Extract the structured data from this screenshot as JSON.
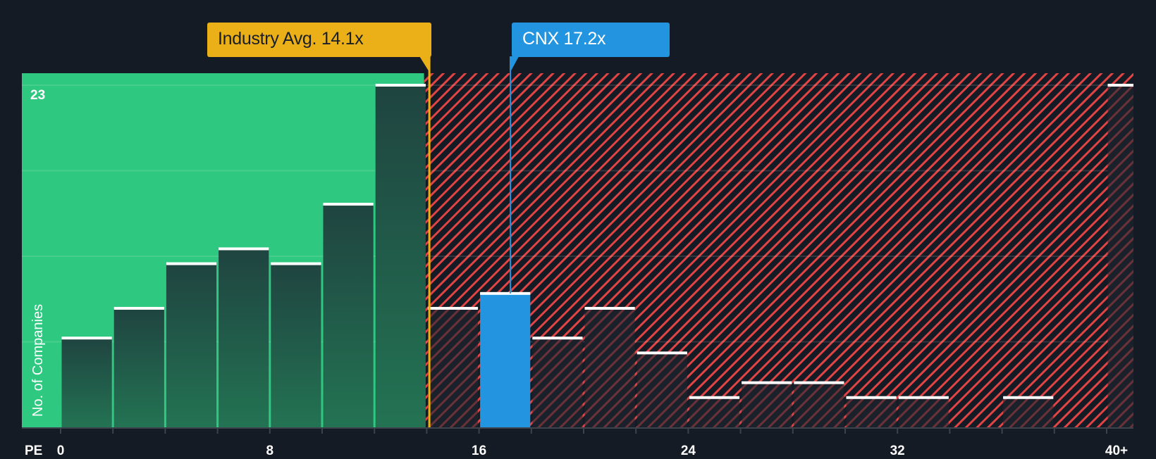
{
  "chart_data": {
    "type": "bar",
    "title": "",
    "xlabel": "PE",
    "ylabel": "No. of Companies",
    "y_max_label": "23",
    "ylim": [
      0,
      23
    ],
    "xlim": [
      0,
      42
    ],
    "x_tick_labels": [
      "0",
      "8",
      "16",
      "24",
      "32",
      "40+"
    ],
    "x_tick_values": [
      0,
      8,
      16,
      24,
      32,
      40
    ],
    "bin_width": 2,
    "bins": [
      {
        "from": 0,
        "to": 2,
        "count": 6
      },
      {
        "from": 2,
        "to": 4,
        "count": 8
      },
      {
        "from": 4,
        "to": 6,
        "count": 11
      },
      {
        "from": 6,
        "to": 8,
        "count": 12
      },
      {
        "from": 8,
        "to": 10,
        "count": 11
      },
      {
        "from": 10,
        "to": 12,
        "count": 15
      },
      {
        "from": 12,
        "to": 14,
        "count": 23
      },
      {
        "from": 14,
        "to": 16,
        "count": 8
      },
      {
        "from": 16,
        "to": 18,
        "count": 9,
        "highlight": true
      },
      {
        "from": 18,
        "to": 20,
        "count": 6
      },
      {
        "from": 20,
        "to": 22,
        "count": 8
      },
      {
        "from": 22,
        "to": 24,
        "count": 5
      },
      {
        "from": 24,
        "to": 26,
        "count": 2
      },
      {
        "from": 26,
        "to": 28,
        "count": 3
      },
      {
        "from": 28,
        "to": 30,
        "count": 3
      },
      {
        "from": 30,
        "to": 32,
        "count": 2
      },
      {
        "from": 32,
        "to": 34,
        "count": 2
      },
      {
        "from": 34,
        "to": 36,
        "count": 0
      },
      {
        "from": 36,
        "to": 38,
        "count": 2
      },
      {
        "from": 38,
        "to": 40,
        "count": 0
      },
      {
        "from": 40,
        "to": 42,
        "count": 23,
        "label": "40+"
      }
    ],
    "gridlines": [
      5.75,
      11.5,
      17.25,
      23
    ],
    "annotations": [
      {
        "name": "industry-average",
        "label": "Industry Avg. 14.1x",
        "value": 14.1,
        "color": "#ebb017"
      },
      {
        "name": "company",
        "label": "CNX 17.2x",
        "value": 17.2,
        "color": "#2394df"
      }
    ],
    "regions": [
      {
        "name": "below-average",
        "from": 0,
        "to": 14.1,
        "color": "#2ec880"
      },
      {
        "name": "above-average",
        "from": 14.1,
        "to": 42,
        "color": "#e04444",
        "pattern": "diagonal-hatch"
      }
    ],
    "legend": null
  },
  "labels": {
    "industry": "Industry Avg. 14.1x",
    "company": "CNX 17.2x",
    "ylabel": "No. of Companies",
    "ymax": "23",
    "xname": "PE",
    "ticks": [
      "0",
      "8",
      "16",
      "24",
      "32",
      "40+"
    ]
  },
  "colors": {
    "background": "#151b24",
    "green_region": "#2ec880",
    "bar_dark": "#1f4a40",
    "hatch_red": "#e04444",
    "company_bar": "#2394df",
    "industry_line": "#ebb017"
  }
}
